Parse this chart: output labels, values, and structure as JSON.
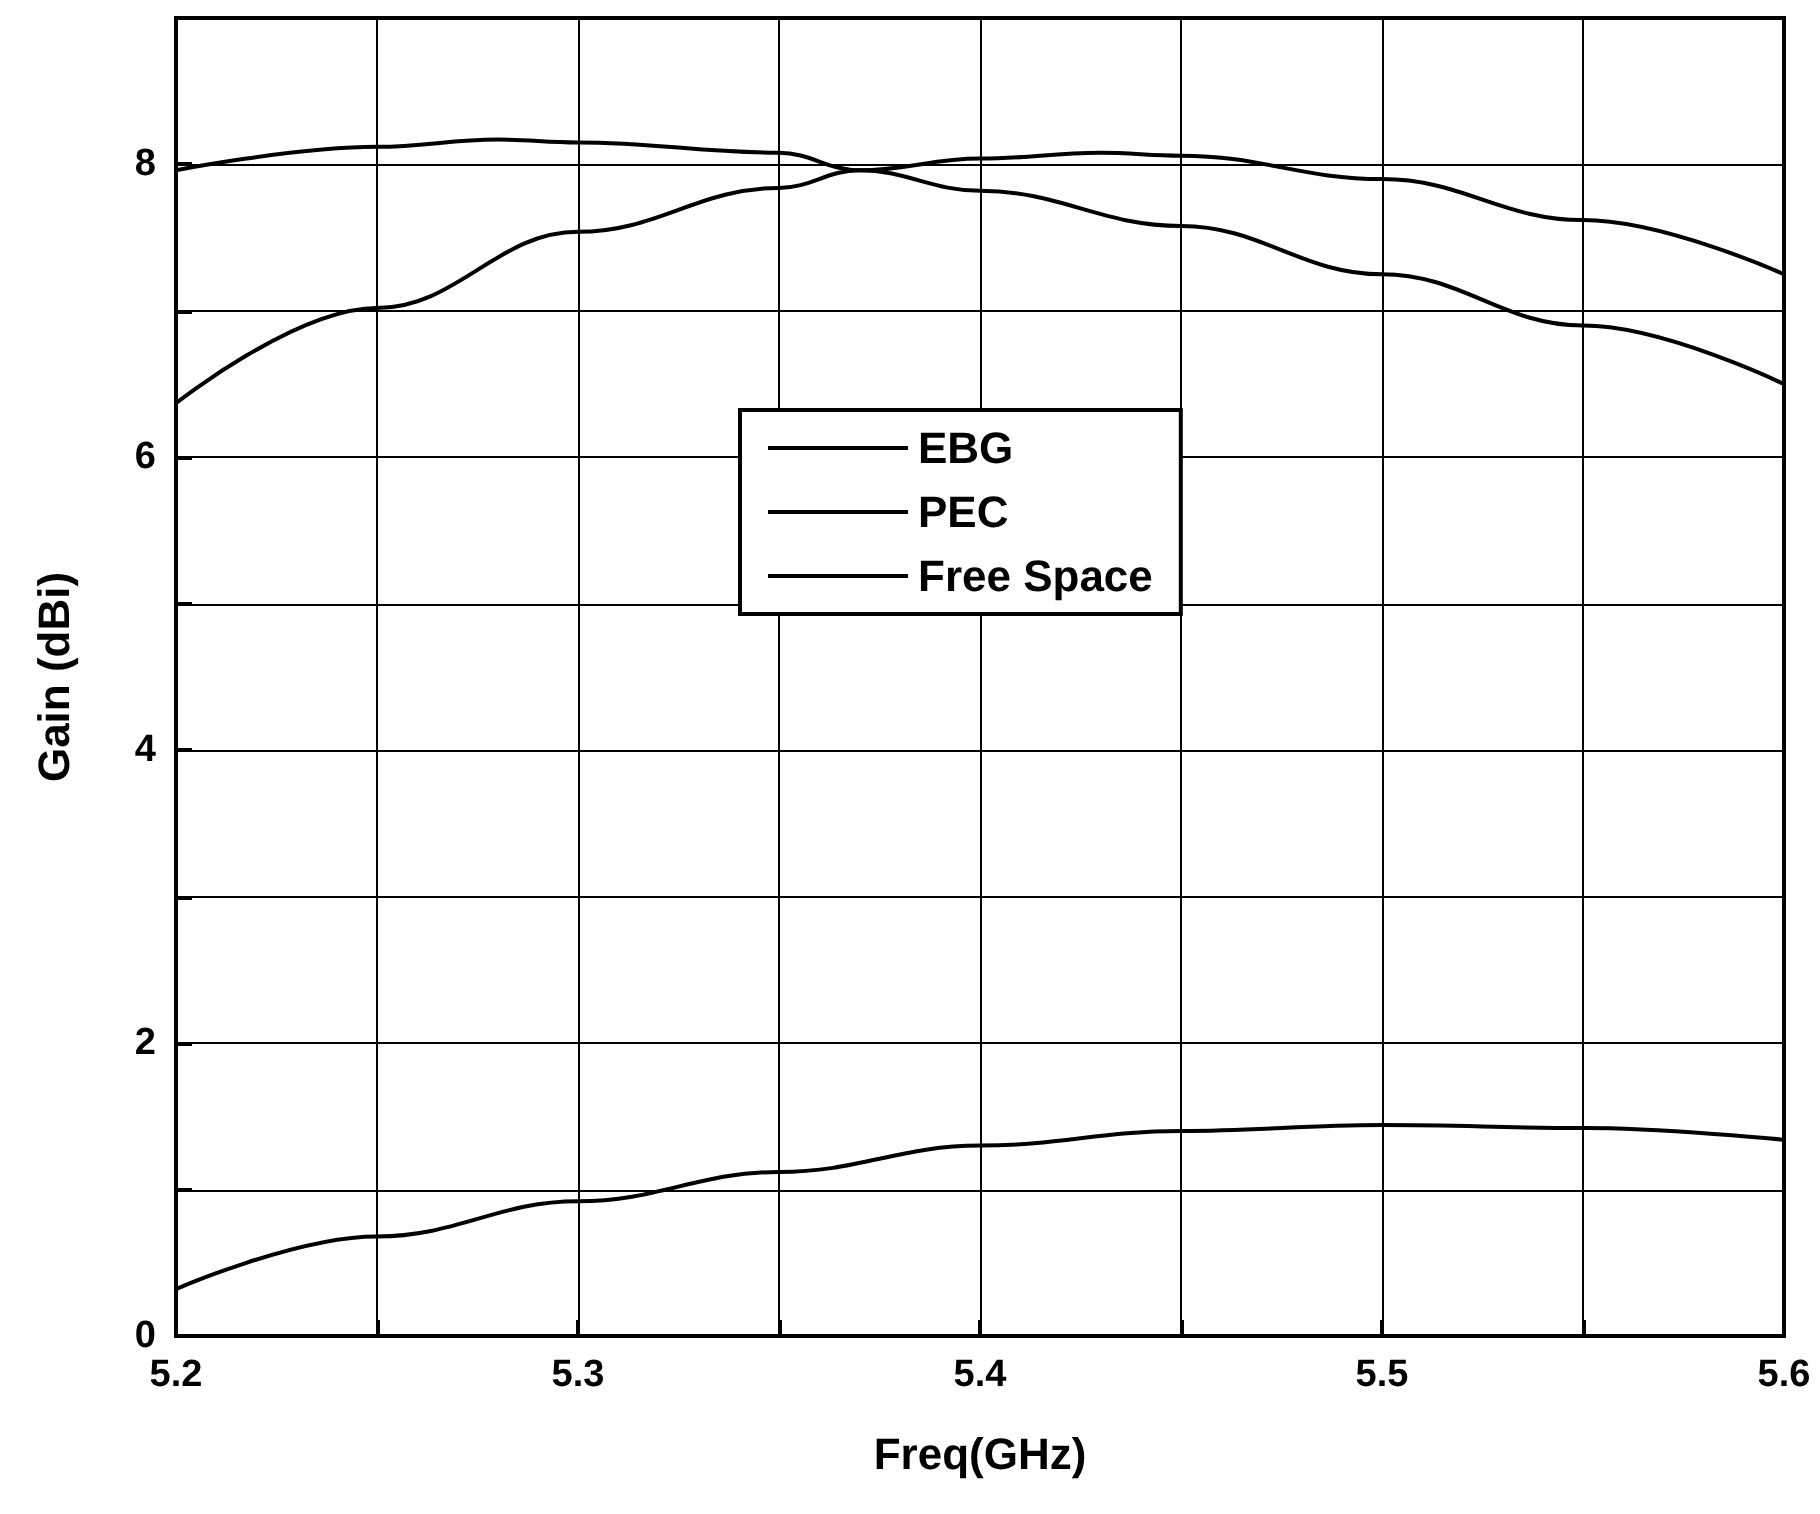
{
  "chart_data": {
    "type": "line",
    "xlabel": "Freq(GHz)",
    "ylabel": "Gain (dBi)",
    "xlim": [
      5.2,
      5.6
    ],
    "ylim": [
      0,
      9
    ],
    "xticks": [
      5.2,
      {
        "value": 5.25,
        "label": null
      },
      5.3,
      {
        "value": 5.35,
        "label": null
      },
      5.4,
      {
        "value": 5.45,
        "label": null
      },
      5.5,
      {
        "value": 5.55,
        "label": null
      },
      5.6
    ],
    "yticks": [
      0,
      {
        "value": 1,
        "label": null
      },
      2,
      {
        "value": 3,
        "label": null
      },
      4,
      {
        "value": 5,
        "label": null
      },
      6,
      {
        "value": 7,
        "label": null
      },
      8
    ],
    "x": [
      5.2,
      5.25,
      5.3,
      5.35,
      5.37,
      5.4,
      5.43,
      5.45,
      5.5,
      5.55,
      5.6
    ],
    "series": [
      {
        "name": "EBG",
        "color": "#000000",
        "values": [
          6.37,
          7.02,
          7.54,
          7.84,
          7.96,
          8.04,
          8.08,
          8.06,
          7.9,
          7.62,
          7.25
        ]
      },
      {
        "name": "PEC",
        "color": "#000000",
        "x": [
          5.2,
          5.25,
          5.28,
          5.3,
          5.35,
          5.37,
          5.4,
          5.45,
          5.5,
          5.55,
          5.6
        ],
        "values": [
          7.96,
          8.12,
          8.17,
          8.15,
          8.08,
          7.96,
          7.82,
          7.58,
          7.25,
          6.9,
          6.5
        ]
      },
      {
        "name": "Free Space",
        "color": "#000000",
        "x": [
          5.2,
          5.25,
          5.3,
          5.35,
          5.4,
          5.45,
          5.5,
          5.55,
          5.6
        ],
        "values": [
          0.32,
          0.68,
          0.92,
          1.12,
          1.3,
          1.4,
          1.44,
          1.42,
          1.34
        ]
      }
    ],
    "grid": true,
    "legend": "center",
    "marker": "none",
    "line_style": "solid"
  }
}
